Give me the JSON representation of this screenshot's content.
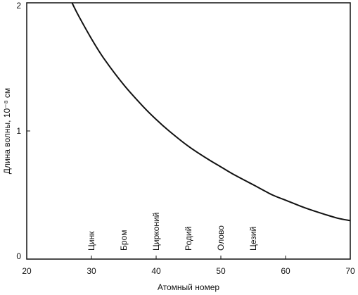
{
  "chart_data": {
    "type": "line",
    "title": "",
    "xlabel": "Атомный номер",
    "ylabel": "Длина волны, 10⁻⁸ см",
    "xlim": [
      20,
      70
    ],
    "ylim": [
      0,
      2
    ],
    "x_ticks": [
      "20",
      "30",
      "40",
      "50",
      "60",
      "70"
    ],
    "y_ticks": [
      "0",
      "1",
      "2"
    ],
    "grid": false,
    "legend": "none",
    "line_color": "#111111",
    "series": [
      {
        "x": [
          27,
          28,
          30,
          32,
          35,
          38,
          40,
          42,
          45,
          48,
          50,
          52,
          55,
          58,
          60,
          63,
          66,
          68,
          70
        ],
        "y": [
          2.0,
          1.9,
          1.72,
          1.56,
          1.36,
          1.19,
          1.09,
          1.0,
          0.88,
          0.78,
          0.72,
          0.66,
          0.58,
          0.5,
          0.46,
          0.4,
          0.35,
          0.32,
          0.3
        ]
      }
    ],
    "elements": [
      {
        "label": "Цинк",
        "x": 30
      },
      {
        "label": "Бром",
        "x": 35
      },
      {
        "label": "Цирконий",
        "x": 40
      },
      {
        "label": "Родий",
        "x": 45
      },
      {
        "label": "Олово",
        "x": 50
      },
      {
        "label": "Цезий",
        "x": 55
      }
    ]
  }
}
